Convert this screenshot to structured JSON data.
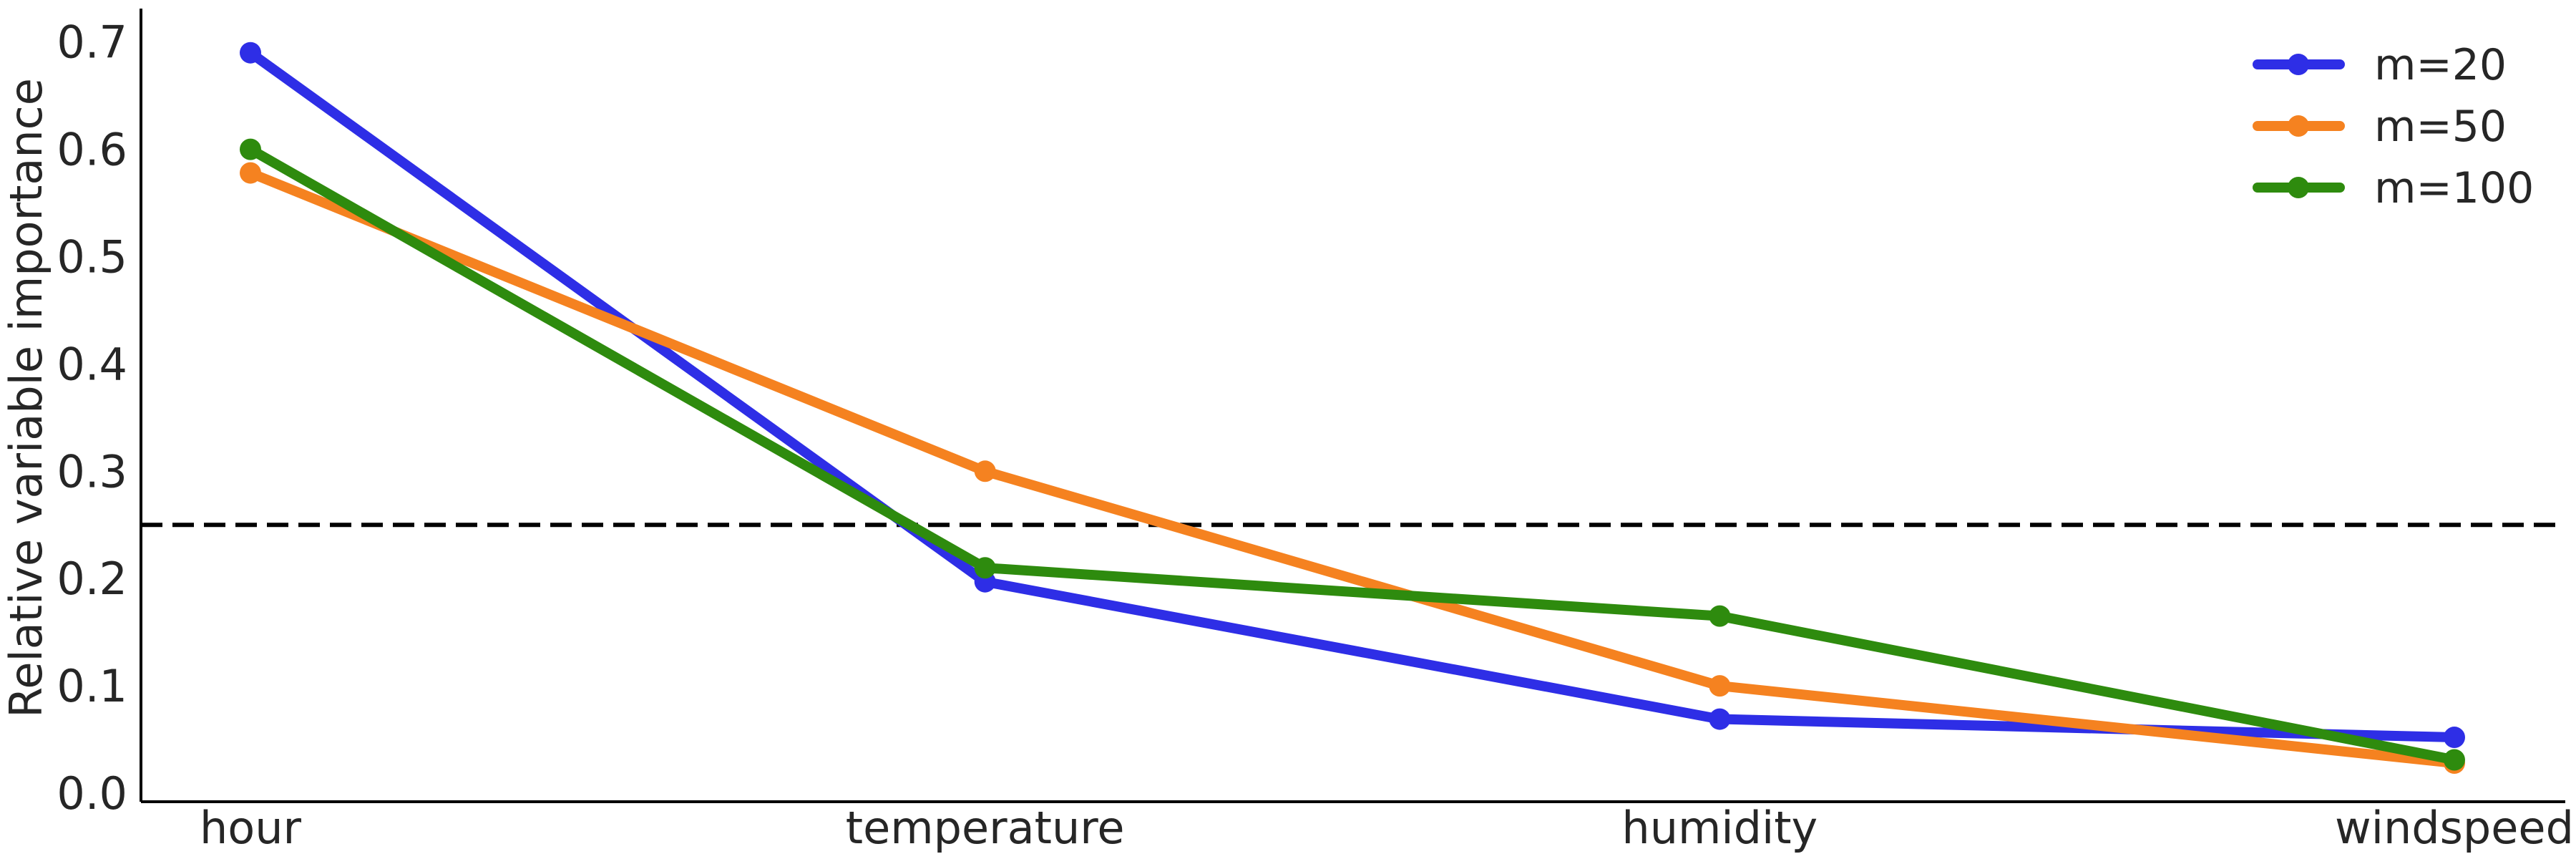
{
  "chart_data": {
    "type": "line",
    "title": "",
    "xlabel": "",
    "ylabel": "Relative variable importance",
    "categories": [
      "hour",
      "temperature",
      "humidity",
      "windspeed"
    ],
    "ylim": [
      0,
      0.72
    ],
    "yticks": [
      "0.0",
      "0.1",
      "0.2",
      "0.3",
      "0.4",
      "0.5",
      "0.6",
      "0.7"
    ],
    "grid": false,
    "legend_position": "top-right",
    "reference_line": {
      "y": 0.25,
      "style": "dashed",
      "color": "#000000"
    },
    "series": [
      {
        "name": "m=20",
        "color": "#2e2ee6",
        "values": [
          0.69,
          0.197,
          0.069,
          0.052
        ]
      },
      {
        "name": "m=50",
        "color": "#f58220",
        "values": [
          0.578,
          0.3,
          0.1,
          0.028
        ]
      },
      {
        "name": "m=100",
        "color": "#2e8b0e",
        "values": [
          0.6,
          0.21,
          0.165,
          0.031
        ]
      }
    ]
  }
}
